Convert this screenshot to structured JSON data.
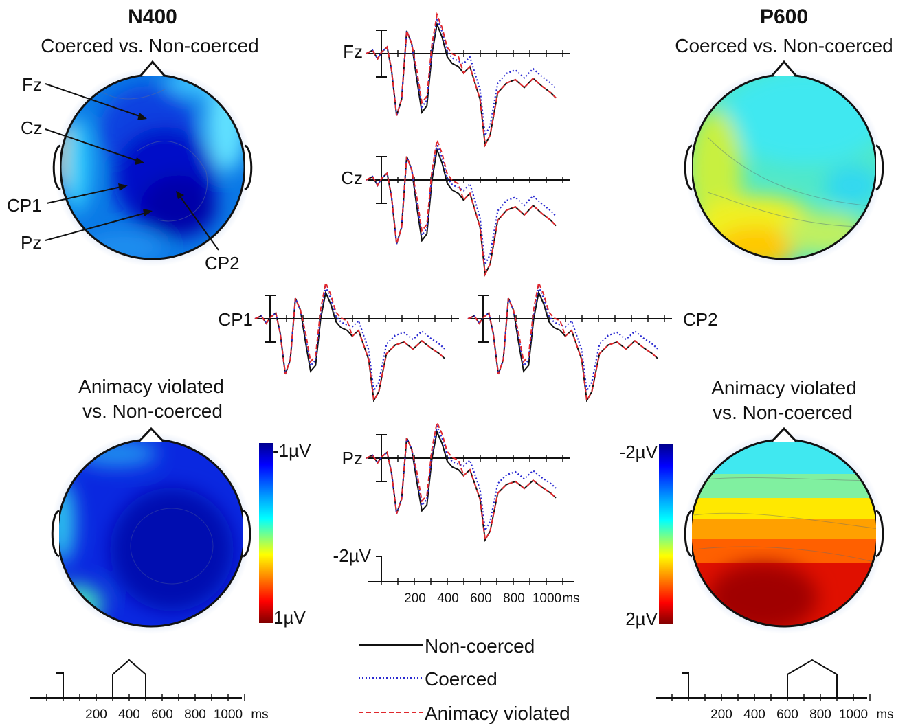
{
  "panels": {
    "n400": {
      "title": "N400",
      "top_subtitle": "Coerced vs. Non-coerced",
      "bottom_subtitle_line1": "Animacy violated",
      "bottom_subtitle_line2": "vs. Non-coerced"
    },
    "p600": {
      "title": "P600",
      "top_subtitle": "Coerced vs. Non-coerced",
      "bottom_subtitle_line1": "Animacy violated",
      "bottom_subtitle_line2": "vs. Non-coerced"
    }
  },
  "electrode_pointers": [
    "Fz",
    "Cz",
    "CP1",
    "Pz",
    "CP2"
  ],
  "erp_channels": {
    "fz": "Fz",
    "cz": "Cz",
    "cp1": "CP1",
    "cp2": "CP2",
    "pz": "Pz"
  },
  "erp_scale": {
    "amplitude_label": "-2µV",
    "ticks": [
      "200",
      "400",
      "600",
      "800",
      "1000"
    ],
    "unit": "ms"
  },
  "colorbars": {
    "n400": {
      "top": "-1µV",
      "bottom": "1µV"
    },
    "p600": {
      "top": "-2µV",
      "bottom": "2µV"
    }
  },
  "window_axes": {
    "n400": {
      "ticks": [
        "200",
        "400",
        "600",
        "800",
        "1000"
      ],
      "unit": "ms",
      "window_ms": [
        300,
        500
      ]
    },
    "p600": {
      "ticks": [
        "200",
        "400",
        "600",
        "800",
        "1000"
      ],
      "unit": "ms",
      "window_ms": [
        600,
        900
      ]
    }
  },
  "legend": [
    {
      "label": "Non-coerced",
      "color": "#111111",
      "style": "solid"
    },
    {
      "label": "Coerced",
      "color": "#2a2ad0",
      "style": "dotted"
    },
    {
      "label": "Animacy violated",
      "color": "#e0282d",
      "style": "dashed"
    }
  ],
  "colors": {
    "jet": [
      "#00008f",
      "#0000ff",
      "#00a0ff",
      "#00ffff",
      "#80ff80",
      "#ffff00",
      "#ff8000",
      "#ff0000",
      "#800000"
    ]
  }
}
